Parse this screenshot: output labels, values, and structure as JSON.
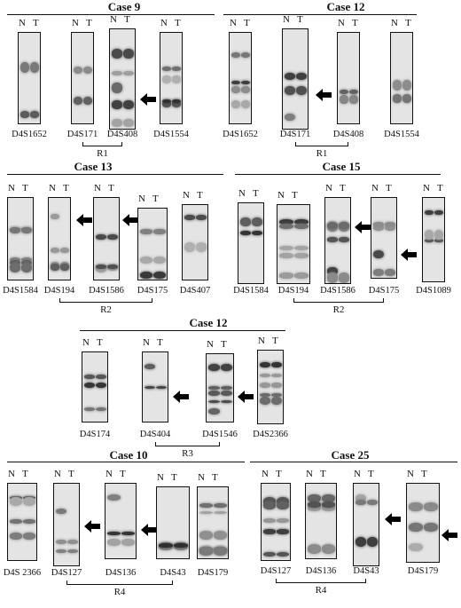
{
  "lane_labels": {
    "normal": "N",
    "tumor": "T"
  },
  "arrow_icon": "arrow-left-icon",
  "blocks": [
    {
      "id": "case9",
      "title": "Case 9",
      "panels": [
        {
          "marker": "D4S1652",
          "loh": false
        },
        {
          "marker": "D4S171",
          "loh": false
        },
        {
          "marker": "D4S408",
          "loh": true
        },
        {
          "marker": "D4S1554",
          "loh": false
        }
      ],
      "region": "R1"
    },
    {
      "id": "case12a",
      "title": "Case 12",
      "panels": [
        {
          "marker": "D4S1652",
          "loh": false
        },
        {
          "marker": "D4S171",
          "loh": true
        },
        {
          "marker": "D4S408",
          "loh": false
        },
        {
          "marker": "D4S1554",
          "loh": false
        }
      ],
      "region": "R1"
    },
    {
      "id": "case13",
      "title": "Case 13",
      "panels": [
        {
          "marker": "D4S1584",
          "loh": false
        },
        {
          "marker": "D4S194",
          "loh": true
        },
        {
          "marker": "D4S1586",
          "loh": true
        },
        {
          "marker": "D4S175",
          "loh": false
        },
        {
          "marker": "D4S407",
          "loh": false
        }
      ],
      "region": "R2"
    },
    {
      "id": "case15",
      "title": "Case 15",
      "panels": [
        {
          "marker": "D4S1584",
          "loh": false
        },
        {
          "marker": "D4S194",
          "loh": false
        },
        {
          "marker": "D4S1586",
          "loh": true
        },
        {
          "marker": "D4S175",
          "loh": true
        },
        {
          "marker": "D4S1089",
          "loh": false
        }
      ],
      "region": "R2"
    },
    {
      "id": "case12b",
      "title": "Case 12",
      "panels": [
        {
          "marker": "D4S174",
          "loh": false
        },
        {
          "marker": "D4S404",
          "loh": true
        },
        {
          "marker": "D4S1546",
          "loh": true
        },
        {
          "marker": "D4S2366",
          "loh": false
        }
      ],
      "region": "R3"
    },
    {
      "id": "case10",
      "title": "Case  10",
      "panels": [
        {
          "marker": "D4S 2366",
          "loh": false
        },
        {
          "marker": "D4S127",
          "loh": true
        },
        {
          "marker": "D4S136",
          "loh": true
        },
        {
          "marker": "D4S43",
          "loh": false
        },
        {
          "marker": "D4S179",
          "loh": false
        }
      ],
      "region": "R4"
    },
    {
      "id": "case25",
      "title": "Case  25",
      "panels": [
        {
          "marker": "D4S127",
          "loh": false
        },
        {
          "marker": "D4S136",
          "loh": false
        },
        {
          "marker": "D4S43",
          "loh": true
        },
        {
          "marker": "D4S179",
          "loh": true
        }
      ],
      "region": "R4"
    }
  ]
}
